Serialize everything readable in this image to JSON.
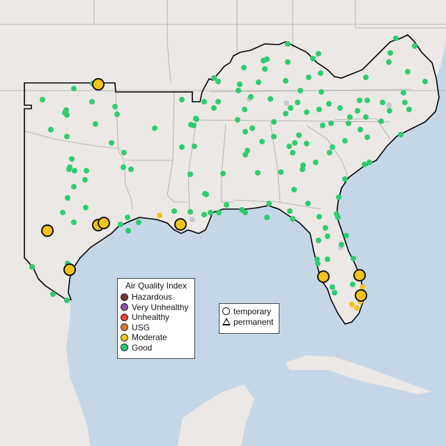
{
  "legend": {
    "title": "Air Quality Index",
    "categories": [
      {
        "label": "Hazardous",
        "color": "#7e3333"
      },
      {
        "label": "Very Unhealthy",
        "color": "#8e4fb0"
      },
      {
        "label": "Unhealthy",
        "color": "#e8453c"
      },
      {
        "label": "USG",
        "color": "#e07b22"
      },
      {
        "label": "Moderate",
        "color": "#f2c318"
      },
      {
        "label": "Good",
        "color": "#2ecc71"
      }
    ]
  },
  "shape_legend": {
    "temporary": "temporary",
    "permanent": "permanent"
  },
  "colors": {
    "land": "#ece8e5",
    "water": "#c5d7e7",
    "no_data": "#c4c8cc",
    "region_outline": "#000000"
  }
}
